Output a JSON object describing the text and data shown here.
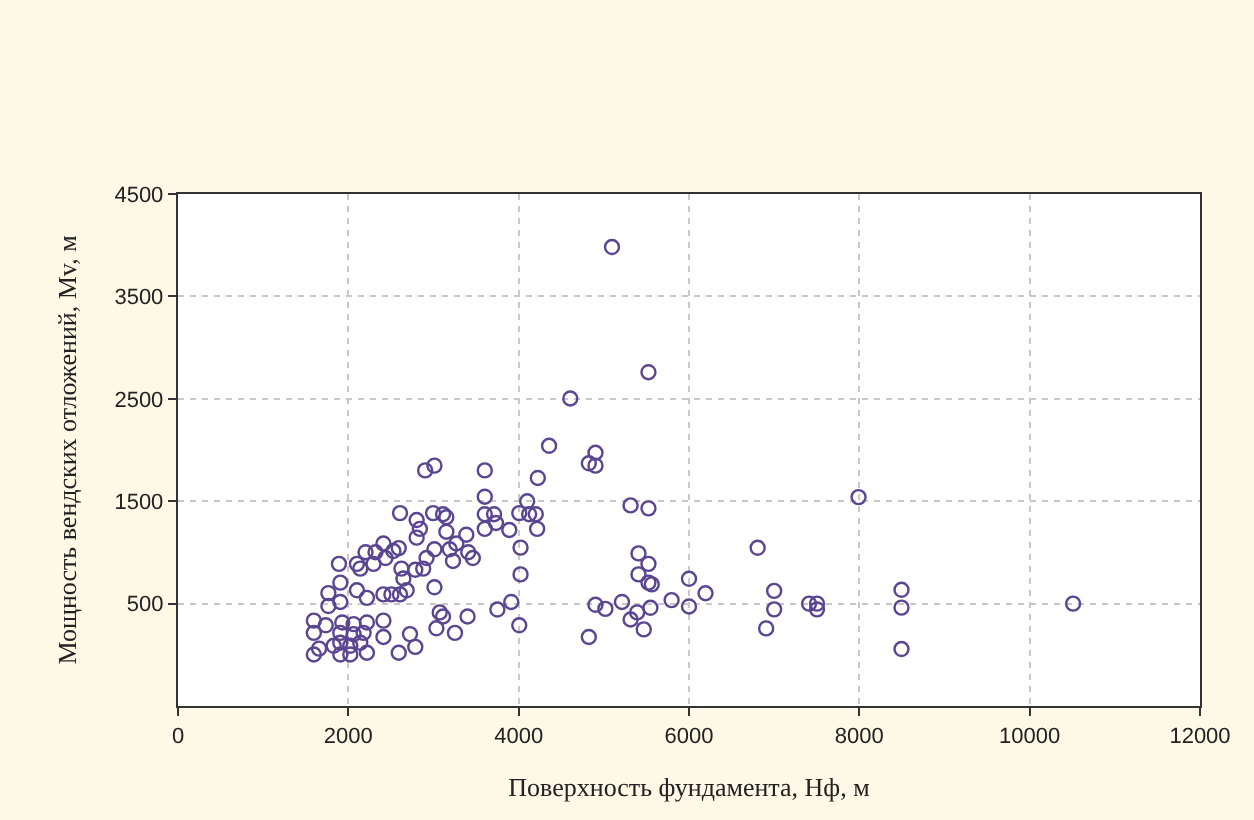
{
  "chart_data": {
    "type": "scatter",
    "xlabel": "Поверхность фундамента, Нф, м",
    "ylabel": "Мощность вендских отложений, Мv, м",
    "xlim": [
      0,
      12000
    ],
    "xticks": [
      0,
      2000,
      4000,
      6000,
      8000,
      10000,
      12000
    ],
    "ylim": [
      -500,
      4500
    ],
    "yticks": [
      500,
      1500,
      2500,
      3500,
      4500
    ],
    "grid": true,
    "marker": "circle",
    "legend": false,
    "series": [
      {
        "color": "#5b4591",
        "x": [
          1595,
          1657,
          1595,
          1595,
          1735,
          1766,
          1766,
          1906,
          1906,
          1890,
          1828,
          1906,
          1906,
          1906,
          1929,
          2023,
          2023,
          2062,
          2062,
          2140,
          2179,
          2218,
          2218,
          2218,
          2101,
          2101,
          2140,
          2202,
          2296,
          2319,
          2412,
          2436,
          2412,
          2412,
          2412,
          2506,
          2529,
          2592,
          2607,
          2592,
          2607,
          2623,
          2646,
          2685,
          2724,
          2786,
          2786,
          2802,
          2802,
          2840,
          2879,
          2918,
          2902,
          3011,
          3011,
          3011,
          2995,
          3073,
          3112,
          3034,
          3112,
          3151,
          3151,
          3190,
          3229,
          3268,
          3252,
          3385,
          3408,
          3462,
          3400,
          3602,
          3602,
          3602,
          3602,
          3711,
          3734,
          3750,
          3890,
          3913,
          4007,
          4022,
          4022,
          4007,
          4100,
          4123,
          4201,
          4217,
          4225,
          4357,
          4606,
          4824,
          4902,
          4902,
          4824,
          4902,
          5018,
          5096,
          5213,
          5314,
          5314,
          5391,
          5469,
          5407,
          5407,
          5524,
          5524,
          5524,
          5524,
          5547,
          5563,
          5796,
          6000,
          6000,
          6194,
          6806,
          7000,
          7000,
          6906,
          7410,
          7503,
          7503,
          7991,
          8495,
          8495,
          8495,
          10510
        ],
        "values": [
          3,
          60,
          214,
          334,
          288,
          476,
          602,
          516,
          705,
          888,
          88,
          3,
          117,
          214,
          316,
          3,
          88,
          202,
          300,
          117,
          214,
          316,
          20,
          556,
          630,
          888,
          842,
          1002,
          888,
          1002,
          1087,
          945,
          590,
          334,
          174,
          590,
          1013,
          1042,
          590,
          20,
          1384,
          842,
          745,
          630,
          202,
          77,
          830,
          1144,
          1316,
          1230,
          842,
          945,
          1801,
          1847,
          659,
          1030,
          1384,
          414,
          374,
          259,
          1373,
          1344,
          1202,
          1030,
          916,
          1087,
          214,
          1173,
          1002,
          945,
          374,
          1801,
          1544,
          1373,
          1230,
          1373,
          1287,
          442,
          1219,
          516,
          1384,
          1047,
          785,
          288,
          1499,
          1373,
          1373,
          1230,
          1727,
          2041,
          2503,
          1870,
          1973,
          1847,
          174,
          488,
          448,
          3982,
          516,
          1459,
          345,
          414,
          248,
          990,
          785,
          1430,
          888,
          705,
          2760,
          459,
          688,
          534,
          742,
          472,
          601,
          1045,
          624,
          444,
          258,
          500,
          500,
          444,
          1540,
          635,
          461,
          56,
          500
        ]
      }
    ]
  }
}
